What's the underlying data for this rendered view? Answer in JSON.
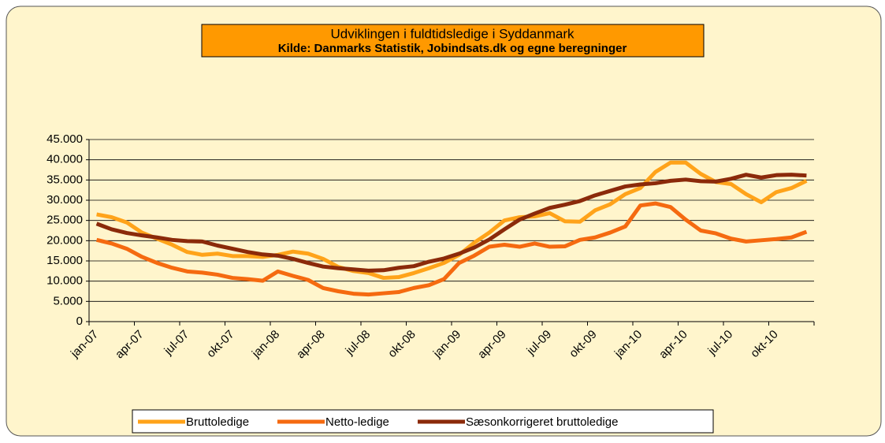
{
  "chart_data": {
    "type": "line",
    "title": "Udviklingen i fuldtidsledige i Syddanmark",
    "subtitle": "Kilde: Danmarks Statistik, Jobindsats.dk og egne beregninger",
    "categories": [
      "jan-07",
      null,
      null,
      "apr-07",
      null,
      null,
      "jul-07",
      null,
      null,
      "okt-07",
      null,
      null,
      "jan-08",
      null,
      null,
      "apr-08",
      null,
      null,
      "jul-08",
      null,
      null,
      "okt-08",
      null,
      null,
      "jan-09",
      null,
      null,
      "apr-09",
      null,
      null,
      "jul-09",
      null,
      null,
      "okt-09",
      null,
      null,
      "jan-10",
      null,
      null,
      "apr-10",
      null,
      null,
      "jul-10",
      null,
      null,
      "okt-10",
      null,
      null
    ],
    "series": [
      {
        "name": "Bruttoledige",
        "color": "#ffa31a",
        "values": [
          26500,
          25800,
          24500,
          22000,
          20500,
          19000,
          17200,
          16500,
          16800,
          16200,
          16200,
          16000,
          16500,
          17300,
          16800,
          15500,
          13500,
          12500,
          12000,
          10800,
          11000,
          12000,
          13200,
          14500,
          16500,
          19500,
          22000,
          25000,
          25800,
          26000,
          26800,
          24800,
          24700,
          27500,
          29000,
          31500,
          33000,
          37000,
          39300,
          39300,
          36500,
          34500,
          34000,
          31500,
          29500,
          32000,
          33000,
          34800
        ]
      },
      {
        "name": "Netto-ledige",
        "color": "#f56a10",
        "values": [
          20200,
          19300,
          18000,
          16000,
          14500,
          13300,
          12400,
          12100,
          11600,
          10800,
          10500,
          10100,
          12400,
          11300,
          10300,
          8300,
          7500,
          6900,
          6700,
          7000,
          7300,
          8300,
          9000,
          10500,
          14500,
          16300,
          18500,
          19000,
          18500,
          19300,
          18500,
          18600,
          20200,
          20800,
          22000,
          23500,
          28700,
          29200,
          28300,
          25200,
          22500,
          21800,
          20500,
          19800,
          20100,
          20400,
          20800,
          22200
        ]
      },
      {
        "name": "Sæsonkorrigeret bruttoledige",
        "color": "#8b2a0a",
        "values": [
          24200,
          22800,
          21900,
          21300,
          20800,
          20200,
          19900,
          19800,
          18800,
          18000,
          17200,
          16600,
          16300,
          15500,
          14500,
          13600,
          13200,
          12900,
          12600,
          12700,
          13300,
          13700,
          14800,
          15600,
          16800,
          18300,
          20300,
          22800,
          25200,
          26700,
          28100,
          28900,
          29800,
          31200,
          32300,
          33400,
          33900,
          34200,
          34800,
          35100,
          34700,
          34600,
          35300,
          36300,
          35600,
          36200,
          36300,
          36100
        ]
      }
    ],
    "ylim": [
      0,
      45000
    ],
    "yticks": [
      0,
      {
        "value": 5000,
        "label": "5.000"
      },
      {
        "value": 10000,
        "label": "10.000"
      },
      {
        "value": 15000,
        "label": "15.000"
      },
      {
        "value": 20000,
        "label": "20.000"
      },
      {
        "value": 25000,
        "label": "25.000"
      },
      {
        "value": 30000,
        "label": "30.000"
      },
      {
        "value": 35000,
        "label": "35.000"
      },
      {
        "value": 40000,
        "label": "40.000"
      },
      {
        "value": 45000,
        "label": "45.000"
      }
    ],
    "grid": true,
    "legend": "bottom"
  }
}
